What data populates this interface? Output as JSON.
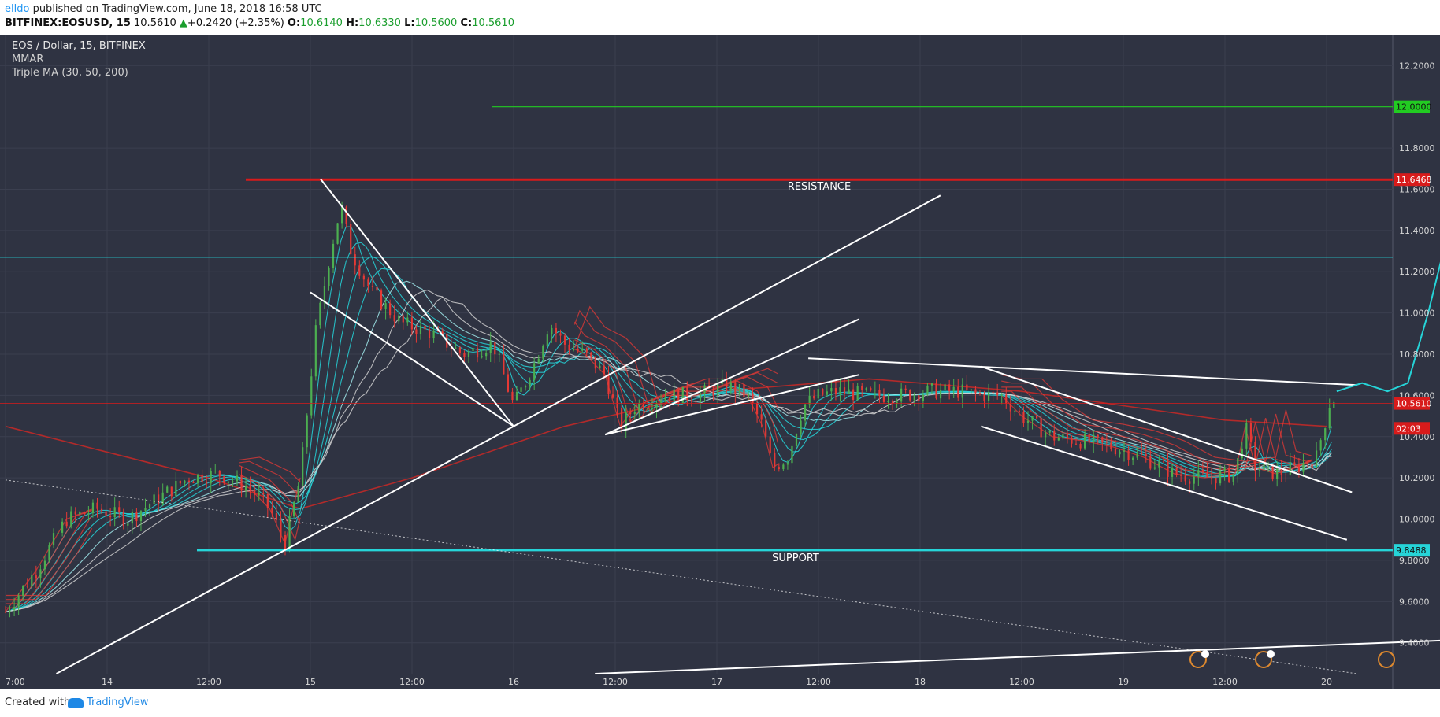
{
  "header": {
    "author": "elldo",
    "published_text": " published on TradingView.com, June 18, 2018 16:58 UTC",
    "symbol": "BITFINEX:EOSUSD, 15",
    "last": "10.5610",
    "change_arrow": "▲",
    "change": "+0.2420 (+2.35%)",
    "o_label": "O:",
    "o_value": "10.6140",
    "h_label": "H:",
    "h_value": "10.6330",
    "l_label": "L:",
    "l_value": "10.5600",
    "c_label": "C:",
    "c_value": "10.5610"
  },
  "legend": {
    "line1": "EOS / Dollar, 15, BITFINEX",
    "line2": "MMAR",
    "line3": "Triple MA (30, 50, 200)"
  },
  "footer": {
    "created_with": "Created with",
    "brand": "TradingView"
  },
  "colors": {
    "background": "#2f3342",
    "grid": "#3b3f4f",
    "up": "#4caf50",
    "down": "#e53935",
    "cyan": "#26d4d8",
    "resistance": "#d81b1b",
    "target_green": "#22cc22",
    "trendline": "#ffffff"
  },
  "chart_data": {
    "type": "candlestick",
    "title": "EOS / Dollar, 15, BITFINEX",
    "ylim": [
      9.25,
      12.35
    ],
    "y_ticks": [
      "12.2000",
      "11.8000",
      "11.6000",
      "11.4000",
      "11.2000",
      "11.0000",
      "10.8000",
      "10.6000",
      "10.4000",
      "10.2000",
      "10.0000",
      "9.8000",
      "9.6000",
      "9.4000"
    ],
    "x_tick_labels": [
      "7:00",
      "14",
      "12:00",
      "15",
      "12:00",
      "16",
      "12:00",
      "17",
      "12:00",
      "18",
      "12:00",
      "19",
      "12:00",
      "20"
    ],
    "price_labels": [
      {
        "label": "12.0000",
        "value": 12.0,
        "color": "#22cc22"
      },
      {
        "label": "11.6468",
        "value": 11.6468,
        "color": "#d81b1b"
      },
      {
        "label": "10.5610",
        "value": 10.561,
        "color": "#d81b1b"
      },
      {
        "label": "02:03",
        "value": 10.44,
        "color": "#d81b1b"
      },
      {
        "label": "9.8488",
        "value": 9.8488,
        "color": "#26d4d8"
      }
    ],
    "levels": [
      {
        "name": "target",
        "value": 12.0,
        "color": "#22cc22"
      },
      {
        "name": "RESISTANCE",
        "value": 11.6468,
        "color": "#d81b1b"
      },
      {
        "name": "upper",
        "value": 11.27,
        "color": "#26d4d8"
      },
      {
        "name": "last",
        "value": 10.561,
        "color": "#d81b1b"
      },
      {
        "name": "SUPPORT",
        "value": 9.8488,
        "color": "#26d4d8"
      }
    ],
    "annotations": [
      "RESISTANCE",
      "SUPPORT"
    ],
    "price_path": [
      [
        0,
        9.55
      ],
      [
        0.3,
        9.75
      ],
      [
        0.6,
        10.0
      ],
      [
        0.9,
        10.05
      ],
      [
        1.2,
        10.0
      ],
      [
        1.5,
        10.1
      ],
      [
        1.8,
        10.2
      ],
      [
        2.1,
        10.22
      ],
      [
        2.4,
        10.15
      ],
      [
        2.6,
        10.05
      ],
      [
        2.75,
        9.88
      ],
      [
        2.9,
        10.2
      ],
      [
        3.05,
        10.9
      ],
      [
        3.2,
        11.3
      ],
      [
        3.3,
        11.52
      ],
      [
        3.4,
        11.3
      ],
      [
        3.6,
        11.1
      ],
      [
        3.9,
        10.95
      ],
      [
        4.2,
        10.9
      ],
      [
        4.5,
        10.8
      ],
      [
        4.8,
        10.85
      ],
      [
        5.0,
        10.55
      ],
      [
        5.2,
        10.75
      ],
      [
        5.35,
        10.95
      ],
      [
        5.5,
        10.85
      ],
      [
        5.7,
        10.8
      ],
      [
        5.9,
        10.7
      ],
      [
        6.05,
        10.45
      ],
      [
        6.2,
        10.55
      ],
      [
        6.5,
        10.6
      ],
      [
        6.8,
        10.6
      ],
      [
        7.1,
        10.65
      ],
      [
        7.3,
        10.6
      ],
      [
        7.45,
        10.45
      ],
      [
        7.55,
        10.25
      ],
      [
        7.7,
        10.3
      ],
      [
        7.85,
        10.55
      ],
      [
        8.0,
        10.6
      ],
      [
        8.2,
        10.62
      ],
      [
        8.5,
        10.6
      ],
      [
        8.8,
        10.6
      ],
      [
        9.1,
        10.62
      ],
      [
        9.4,
        10.62
      ],
      [
        9.6,
        10.6
      ],
      [
        9.8,
        10.6
      ],
      [
        10.0,
        10.5
      ],
      [
        10.3,
        10.4
      ],
      [
        10.6,
        10.38
      ],
      [
        10.9,
        10.35
      ],
      [
        11.2,
        10.3
      ],
      [
        11.5,
        10.22
      ],
      [
        11.8,
        10.2
      ],
      [
        12.1,
        10.22
      ],
      [
        12.2,
        10.45
      ],
      [
        12.3,
        10.25
      ],
      [
        12.5,
        10.22
      ],
      [
        12.7,
        10.25
      ],
      [
        12.9,
        10.3
      ],
      [
        13.05,
        10.6
      ],
      [
        13.1,
        10.561
      ]
    ],
    "ma_200": [
      [
        0,
        10.45
      ],
      [
        2,
        10.2
      ],
      [
        2.9,
        10.05
      ],
      [
        4,
        10.2
      ],
      [
        5.5,
        10.45
      ],
      [
        7,
        10.62
      ],
      [
        8.5,
        10.68
      ],
      [
        10,
        10.62
      ],
      [
        11,
        10.55
      ],
      [
        12,
        10.48
      ],
      [
        13.0,
        10.45
      ]
    ],
    "trendlines": [
      {
        "from": [
          3.1,
          11.65
        ],
        "to": [
          5.0,
          10.45
        ]
      },
      {
        "from": [
          3.0,
          11.1
        ],
        "to": [
          5.0,
          10.45
        ]
      },
      {
        "from": [
          0.5,
          9.25
        ],
        "to": [
          9.2,
          11.57
        ]
      },
      {
        "from": [
          5.9,
          10.41
        ],
        "to": [
          8.4,
          10.97
        ]
      },
      {
        "from": [
          5.9,
          10.41
        ],
        "to": [
          8.4,
          10.7
        ]
      },
      {
        "from": [
          7.9,
          10.78
        ],
        "to": [
          13.3,
          10.65
        ]
      },
      {
        "from": [
          9.6,
          10.74
        ],
        "to": [
          13.25,
          10.13
        ]
      },
      {
        "from": [
          9.6,
          10.45
        ],
        "to": [
          13.2,
          9.9
        ]
      },
      {
        "from": [
          5.8,
          9.25
        ],
        "to": [
          17.7,
          9.48
        ]
      },
      {
        "from": [
          0,
          10.19
        ],
        "to": [
          13.3,
          9.25
        ],
        "dotted": true
      }
    ],
    "projection": [
      [
        13.1,
        10.62
      ],
      [
        13.35,
        10.66
      ],
      [
        13.6,
        10.62
      ],
      [
        13.8,
        10.66
      ],
      [
        14.0,
        11.0
      ],
      [
        14.25,
        11.5
      ],
      [
        14.3,
        11.66
      ]
    ]
  }
}
